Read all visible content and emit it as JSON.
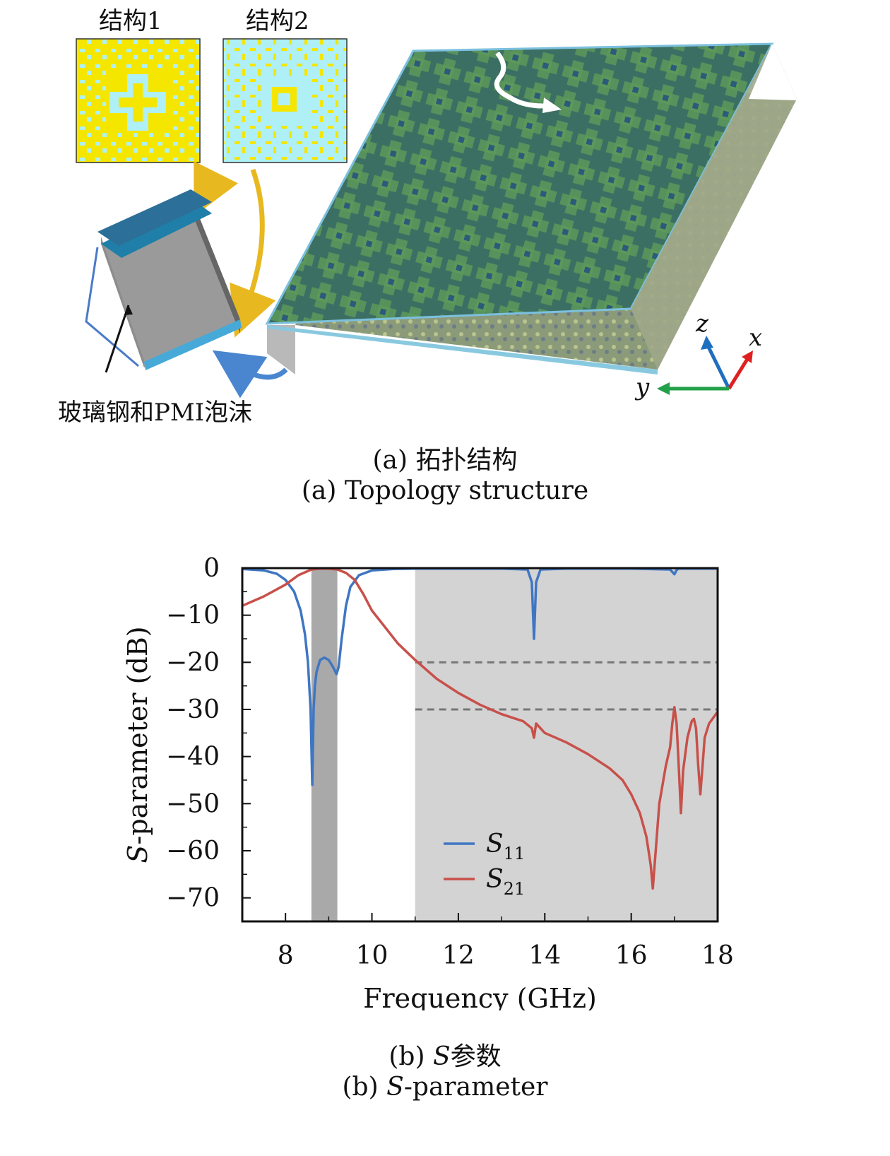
{
  "figure_a": {
    "structure1_label": "结构1",
    "structure2_label": "结构2",
    "material_label": "玻璃钢和PMI泡沫",
    "axis_z": "z",
    "axis_x": "x",
    "axis_y": "y",
    "caption_cn": "(a) 拓扑结构",
    "caption_en": "(a) Topology structure",
    "colors": {
      "unit_yellow": "#f5e600",
      "unit_cyan": "#aef0f5",
      "top_panel": "#3f7a6b",
      "top_panel_edge": "#6fb7d4",
      "arrow_gold": "#e8b820",
      "arrow_blue": "#4a86d0"
    }
  },
  "figure_b": {
    "caption_cn_prefix": "(b) ",
    "caption_cn_italic": "S",
    "caption_cn_suffix": "参数",
    "caption_en_prefix": "(b) ",
    "caption_en_italic": "S",
    "caption_en_suffix": "-parameter"
  },
  "chart_data": {
    "type": "line",
    "xlabel": "Frequency (GHz)",
    "ylabel": "S-parameter (dB)",
    "xlim": [
      7,
      18
    ],
    "ylim": [
      -75,
      0
    ],
    "xticks": [
      8,
      10,
      12,
      14,
      16,
      18
    ],
    "xtick_labels": [
      "8",
      "10",
      "12",
      "14",
      "16",
      "18"
    ],
    "yticks": [
      0,
      -10,
      -20,
      -30,
      -40,
      -50,
      -60,
      -70
    ],
    "ytick_labels": [
      "0",
      "−10",
      "−20",
      "−30",
      "−40",
      "−50",
      "−60",
      "−70"
    ],
    "shaded_regions": [
      [
        8.6,
        9.2
      ],
      [
        11.0,
        18.0
      ]
    ],
    "dashed_reference_lines": [
      -20,
      -30
    ],
    "legend_position": "lower-center",
    "series": [
      {
        "name": "S11",
        "color": "#3f76c2",
        "x": [
          7.0,
          7.5,
          7.8,
          8.0,
          8.2,
          8.35,
          8.45,
          8.52,
          8.58,
          8.62,
          8.65,
          8.68,
          8.72,
          8.8,
          8.9,
          9.0,
          9.1,
          9.18,
          9.23,
          9.3,
          9.4,
          9.5,
          9.7,
          10.0,
          10.5,
          11.0,
          12.0,
          13.0,
          13.6,
          13.7,
          13.75,
          13.8,
          13.9,
          14.5,
          16.0,
          16.9,
          17.0,
          17.05,
          17.1,
          17.5,
          18.0
        ],
        "values": [
          -0.2,
          -0.5,
          -1.2,
          -2.5,
          -5.0,
          -9.0,
          -14.0,
          -20.0,
          -30.0,
          -46.0,
          -30.0,
          -25.0,
          -22.0,
          -19.5,
          -19.0,
          -19.5,
          -21.0,
          -22.5,
          -21.0,
          -15.0,
          -8.0,
          -4.0,
          -1.5,
          -0.5,
          -0.2,
          -0.1,
          -0.1,
          -0.1,
          -0.3,
          -3.0,
          -15.0,
          -3.0,
          -0.3,
          -0.1,
          -0.1,
          -0.3,
          -1.3,
          -0.4,
          -0.1,
          -0.1,
          -0.1
        ]
      },
      {
        "name": "S21",
        "color": "#c8504a",
        "x": [
          7.0,
          7.5,
          8.0,
          8.3,
          8.6,
          8.8,
          9.0,
          9.2,
          9.4,
          9.6,
          9.8,
          10.0,
          10.3,
          10.6,
          11.0,
          11.5,
          12.0,
          12.5,
          13.0,
          13.5,
          13.7,
          13.75,
          13.8,
          13.9,
          14.0,
          14.5,
          15.0,
          15.5,
          15.8,
          16.0,
          16.2,
          16.35,
          16.45,
          16.5,
          16.55,
          16.65,
          16.8,
          16.9,
          16.95,
          17.0,
          17.05,
          17.1,
          17.15,
          17.2,
          17.3,
          17.4,
          17.45,
          17.5,
          17.55,
          17.6,
          17.65,
          17.7,
          17.8,
          18.0
        ],
        "values": [
          -8.0,
          -6.0,
          -3.5,
          -1.5,
          -0.3,
          -0.1,
          -0.1,
          -0.3,
          -1.0,
          -2.5,
          -5.5,
          -9.0,
          -12.5,
          -16.0,
          -19.5,
          -23.5,
          -26.5,
          -29.0,
          -31.0,
          -32.5,
          -34.0,
          -36.0,
          -33.0,
          -34.0,
          -35.0,
          -37.0,
          -39.5,
          -42.5,
          -45.0,
          -48.0,
          -52.0,
          -57.0,
          -63.0,
          -68.0,
          -62.0,
          -50.0,
          -42.0,
          -38.0,
          -33.0,
          -29.5,
          -33.0,
          -42.0,
          -52.0,
          -43.0,
          -36.0,
          -32.5,
          -32.0,
          -34.0,
          -42.0,
          -48.0,
          -42.0,
          -36.0,
          -33.0,
          -30.5
        ]
      }
    ]
  }
}
